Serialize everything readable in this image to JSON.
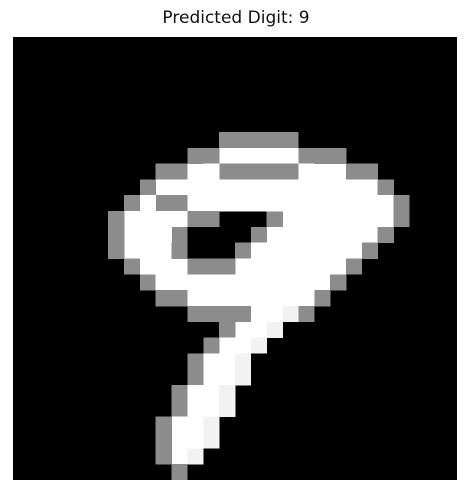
{
  "figure": {
    "title": "Predicted Digit: 9",
    "image": {
      "description_name": "mnist-digit-image",
      "colormap": "gray",
      "background_color": "#000000"
    }
  }
}
